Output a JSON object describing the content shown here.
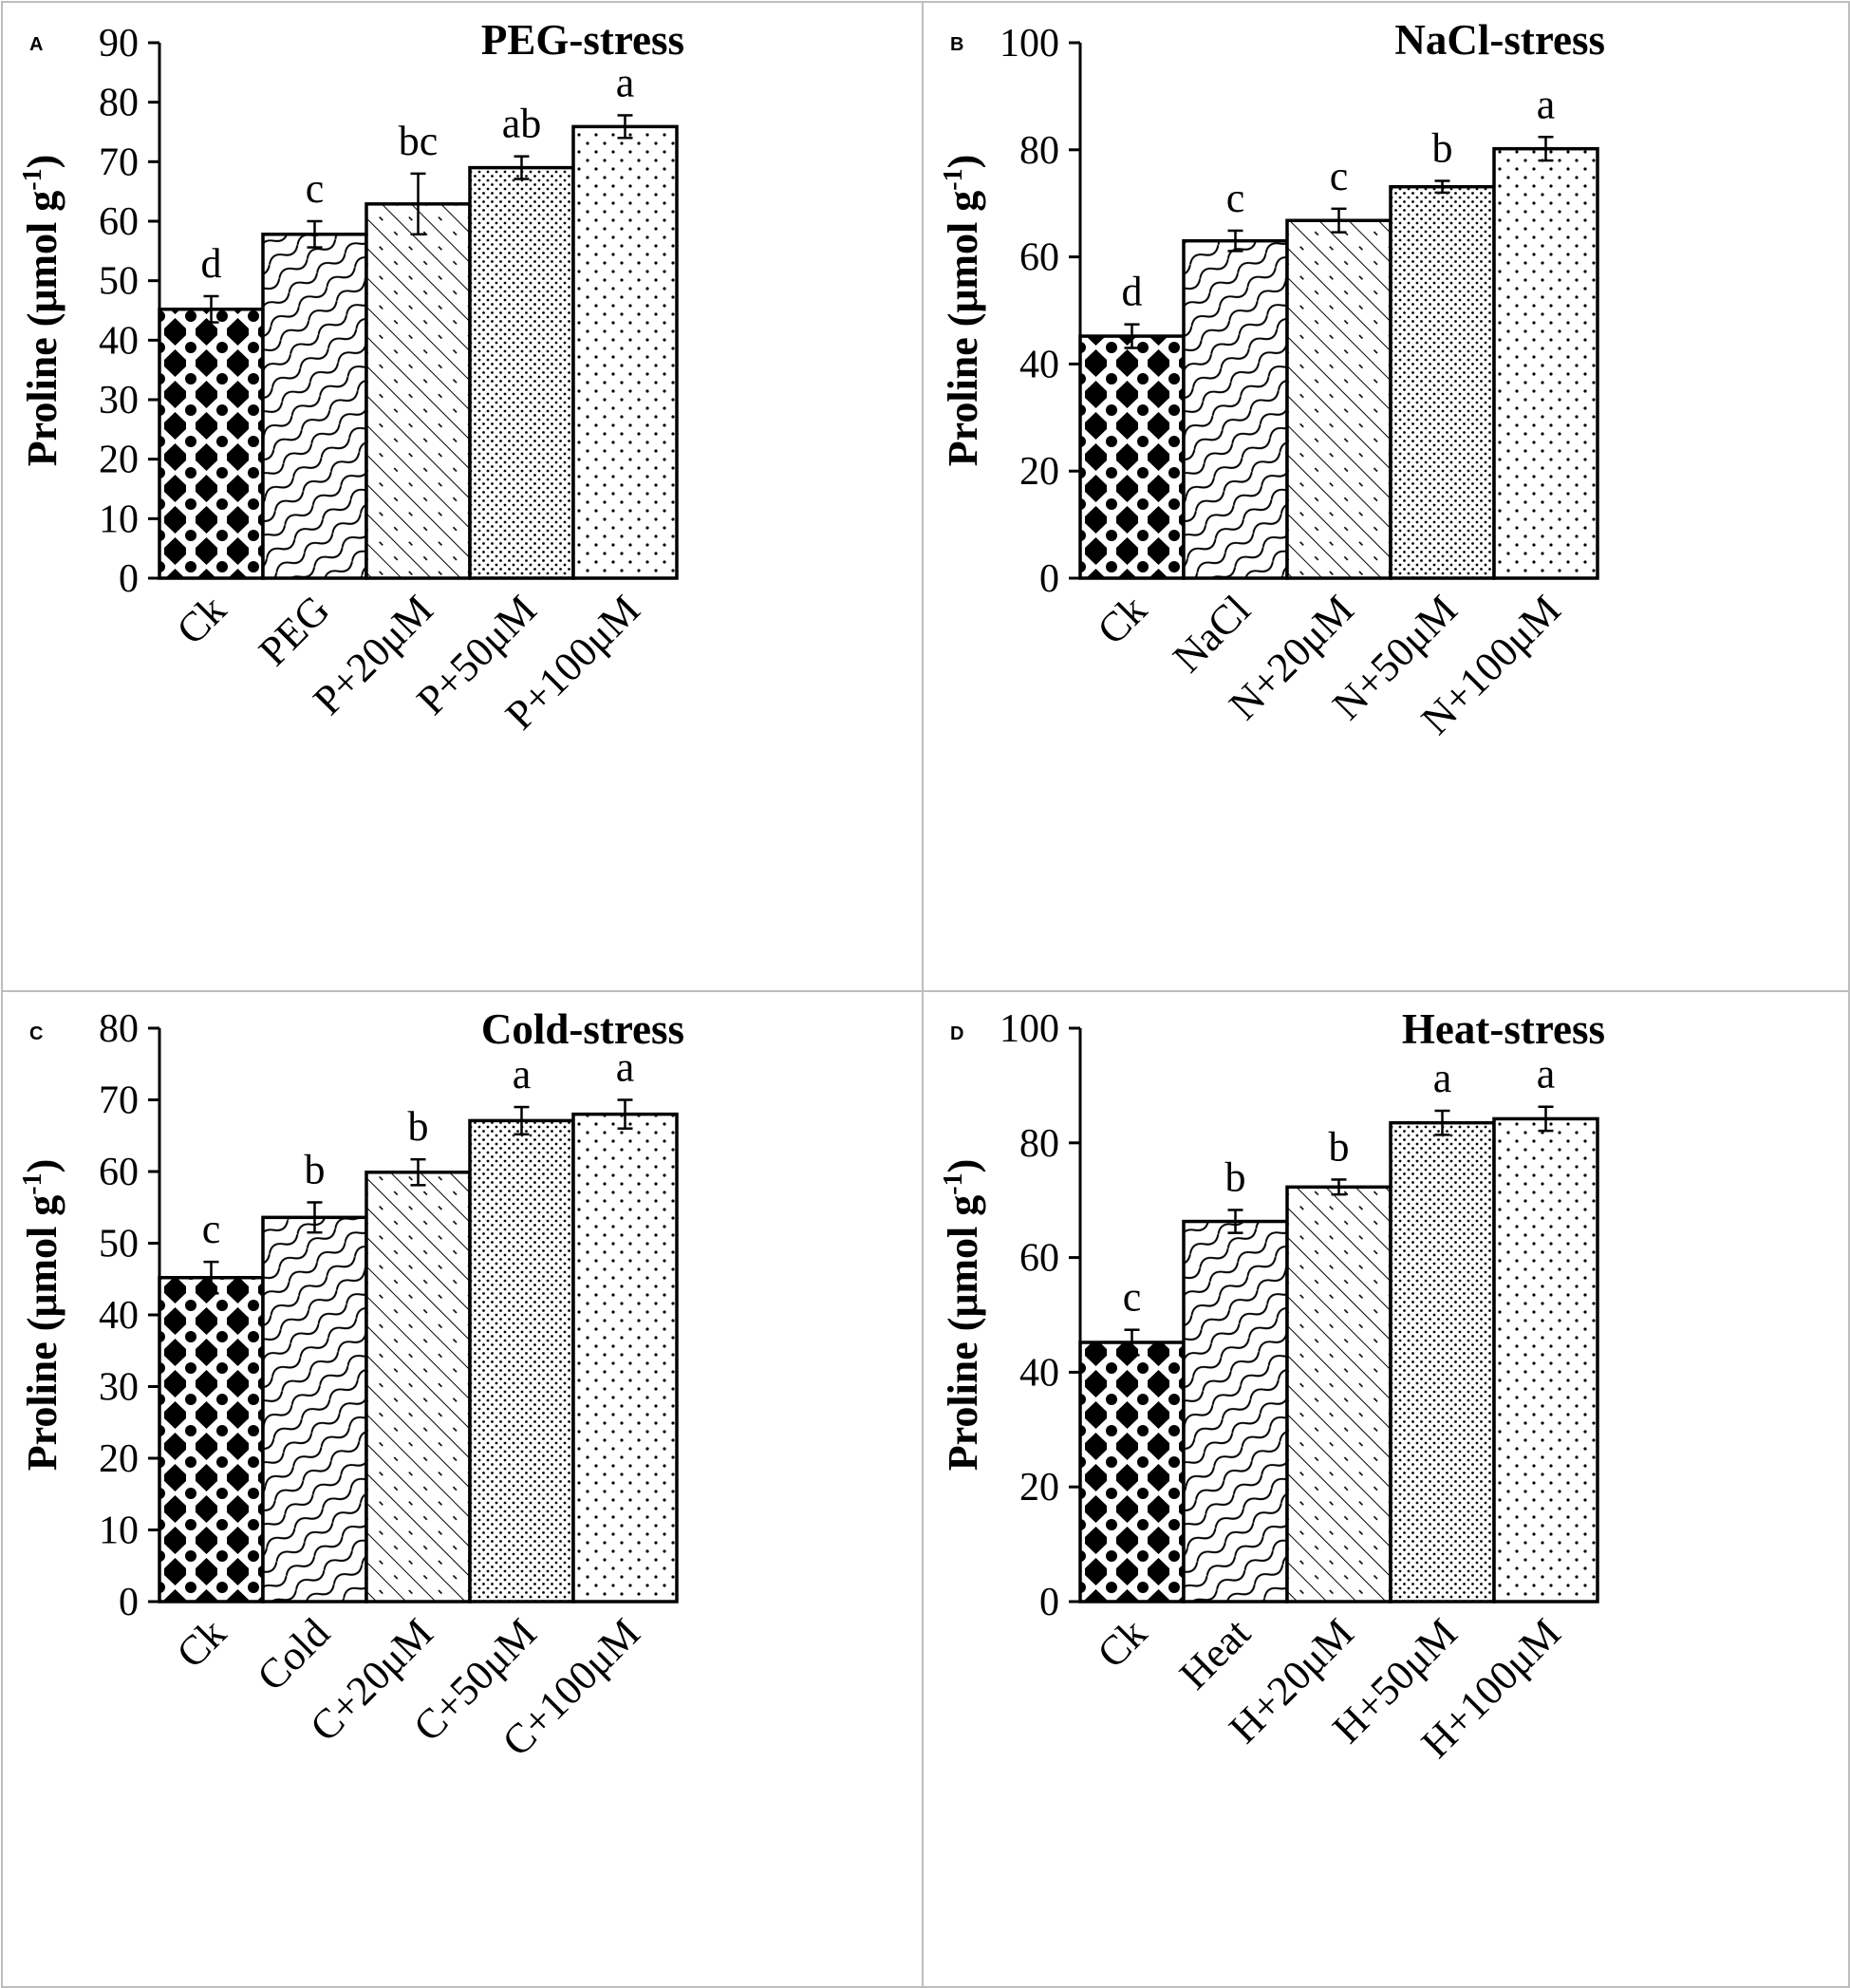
{
  "chart_data": [
    {
      "type": "bar",
      "panel": "A",
      "title": "PEG-stress",
      "ylabel": "Proline (μmol g⁻¹)",
      "ylabel_main": "Proline (μmol g",
      "ylabel_sup": "-1",
      "ylabel_tail": ")",
      "ylim": [
        0,
        90
      ],
      "yticks": [
        0,
        10,
        20,
        30,
        40,
        50,
        60,
        70,
        80,
        90
      ],
      "categories": [
        "Ck",
        "PEG",
        "P+20μM",
        "P+50μM",
        "P+100μM"
      ],
      "values": [
        45.2,
        57.8,
        62.9,
        69.0,
        75.9
      ],
      "errors": [
        2.2,
        2.2,
        5.1,
        1.9,
        1.9
      ],
      "letters": [
        "d",
        "c",
        "bc",
        "ab",
        "a"
      ],
      "grid": false
    },
    {
      "type": "bar",
      "panel": "B",
      "title": "NaCl-stress",
      "ylabel": "Proline (μmol g⁻¹)",
      "ylabel_main": "Proline (μmol g",
      "ylabel_sup": "-1",
      "ylabel_tail": ")",
      "ylim": [
        0,
        100
      ],
      "yticks": [
        0,
        20,
        40,
        60,
        80,
        100
      ],
      "categories": [
        "Ck",
        "NaCl",
        "N+20μM",
        "N+50μM",
        "N+100μM"
      ],
      "values": [
        45.2,
        63.0,
        66.8,
        73.1,
        80.2
      ],
      "errors": [
        2.2,
        1.9,
        2.2,
        1.1,
        2.2
      ],
      "letters": [
        "d",
        "c",
        "c",
        "b",
        "a"
      ],
      "grid": false
    },
    {
      "type": "bar",
      "panel": "C",
      "title": "Cold-stress",
      "ylabel": "Proline (μmol g⁻¹)",
      "ylabel_main": "Proline (μmol g",
      "ylabel_sup": "-1",
      "ylabel_tail": ")",
      "ylim": [
        0,
        80
      ],
      "yticks": [
        0,
        10,
        20,
        30,
        40,
        50,
        60,
        70,
        80
      ],
      "categories": [
        "Ck",
        "Cold",
        "C+20μM",
        "C+50μM",
        "C+100μM"
      ],
      "values": [
        45.2,
        53.6,
        59.9,
        67.1,
        68.0
      ],
      "errors": [
        2.2,
        2.1,
        1.8,
        1.9,
        2.0
      ],
      "letters": [
        "c",
        "b",
        "b",
        "a",
        "a"
      ],
      "grid": false
    },
    {
      "type": "bar",
      "panel": "D",
      "title": "Heat-stress",
      "ylabel": "Proline (μmol g⁻¹)",
      "ylabel_main": "Proline (μmol g",
      "ylabel_sup": "-1",
      "ylabel_tail": ")",
      "ylim": [
        0,
        100
      ],
      "yticks": [
        0,
        20,
        40,
        60,
        80,
        100
      ],
      "categories": [
        "Ck",
        "Heat",
        "H+20μM",
        "H+50μM",
        "H+100μM"
      ],
      "values": [
        45.2,
        66.3,
        72.3,
        83.5,
        84.2
      ],
      "errors": [
        2.2,
        2.0,
        1.3,
        2.1,
        2.1
      ],
      "letters": [
        "c",
        "b",
        "b",
        "a",
        "a"
      ],
      "grid": false
    }
  ]
}
